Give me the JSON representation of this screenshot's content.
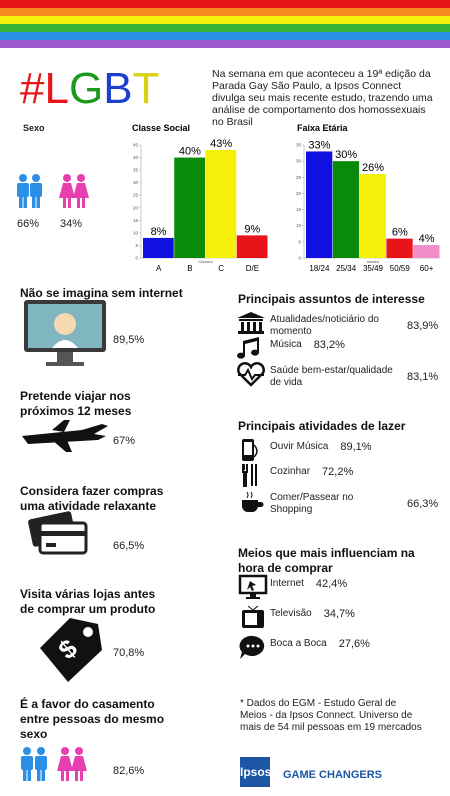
{
  "header": {
    "title": "#LGBT",
    "intro": "Na semana em que aconteceu a 19ª edição da Parada Gay São Paulo, a Ipsos Connect divulga seu mais recente estudo, trazendo uma análise de comportamento dos homossexuais no Brasil"
  },
  "sex": {
    "title": "Sexo",
    "values": [
      "66%",
      "34%"
    ]
  },
  "chart_data": [
    {
      "type": "bar",
      "title": "Classe Social",
      "xlabel": "Classes",
      "categories": [
        "A",
        "B",
        "C",
        "D/E"
      ],
      "values": [
        8,
        40,
        43,
        9
      ],
      "value_labels": [
        "8%",
        "40%",
        "43%",
        "9%"
      ],
      "colors": [
        "#1010e0",
        "#0a8a0a",
        "#f5ef0a",
        "#e8141a"
      ],
      "ylim": [
        0,
        45
      ],
      "yticks": [
        0,
        5,
        10,
        15,
        20,
        25,
        30,
        35,
        40,
        45
      ],
      "grid": false
    },
    {
      "type": "bar",
      "title": "Faixa Etária",
      "xlabel": "Idades",
      "categories": [
        "18/24",
        "25/34",
        "35/49",
        "50/59",
        "60+"
      ],
      "values": [
        33,
        30,
        26,
        6,
        4
      ],
      "value_labels": [
        "33%",
        "30%",
        "26%",
        "6%",
        "4%"
      ],
      "colors": [
        "#1010e0",
        "#0a8a0a",
        "#f5ef0a",
        "#e8141a",
        "#f08cc8"
      ],
      "ylim": [
        0,
        35
      ],
      "yticks": [
        0,
        5,
        10,
        15,
        20,
        25,
        30,
        35
      ],
      "grid": false
    }
  ],
  "left_items": [
    {
      "title": "Não se imagina sem internet",
      "value": "89,5%"
    },
    {
      "title": "Pretende viajar nos próximos 12 meses",
      "value": "67%"
    },
    {
      "title": "Considera fazer compras uma atividade relaxante",
      "value": "66,5%"
    },
    {
      "title": "Visita várias lojas antes de comprar um produto",
      "value": "70,8%"
    },
    {
      "title": "É a favor do casamento entre pessoas do mesmo sexo",
      "value": "82,6%"
    }
  ],
  "right_sections": [
    {
      "title": "Principais assuntos de interesse",
      "items": [
        {
          "label": "Atualidades/noticiário do momento",
          "value": "83,9%"
        },
        {
          "label": "Música",
          "value": "83,2%"
        },
        {
          "label": "Saúde bem-estar/qualidade de vida",
          "value": "83,1%"
        }
      ]
    },
    {
      "title": "Principais atividades de lazer",
      "items": [
        {
          "label": "Ouvir Música",
          "value": "89,1%"
        },
        {
          "label": "Cozinhar",
          "value": "72,2%"
        },
        {
          "label": "Comer/Passear no Shopping",
          "value": "66,3%"
        }
      ]
    },
    {
      "title": "Meios que mais influenciam na hora de comprar",
      "items": [
        {
          "label": "Internet",
          "value": "42,4%"
        },
        {
          "label": "Televisão",
          "value": "34,7%"
        },
        {
          "label": "Boca a Boca",
          "value": "27,6%"
        }
      ]
    }
  ],
  "footnote": "* Dados do EGM - Estudo Geral de Meios - da Ipsos Connect. Universo de mais de 54 mil pessoas em 19 mercados",
  "brand": {
    "logo": "Ipsos",
    "tagline": "GAME CHANGERS"
  }
}
